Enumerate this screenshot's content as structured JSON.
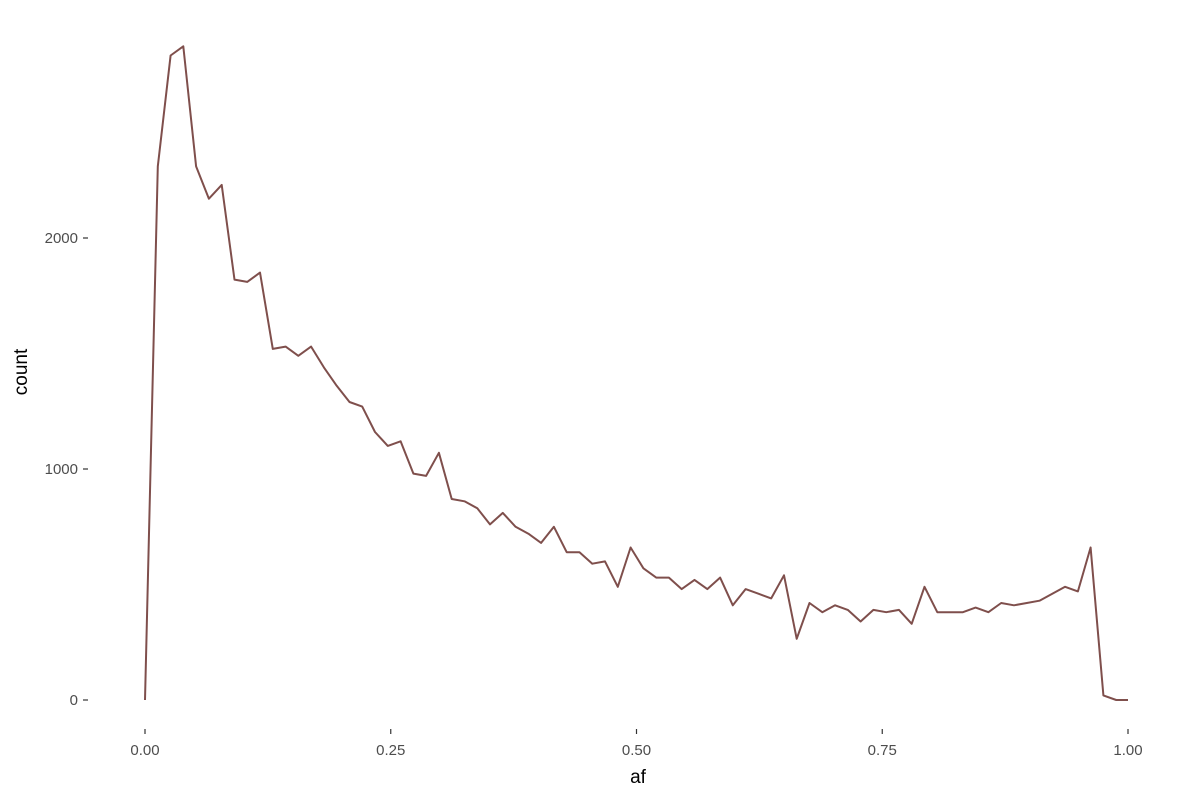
{
  "chart_data": {
    "type": "line",
    "title": "",
    "xlabel": "af",
    "ylabel": "count",
    "xlim": [
      0,
      1
    ],
    "ylim": [
      0,
      2850
    ],
    "grid": false,
    "line_color": "#7f4f4c",
    "x_ticks": [
      {
        "value": 0,
        "label": "0.00"
      },
      {
        "value": 0.25,
        "label": "0.25"
      },
      {
        "value": 0.5,
        "label": "0.50"
      },
      {
        "value": 0.75,
        "label": "0.75"
      },
      {
        "value": 1,
        "label": "1.00"
      }
    ],
    "y_ticks": [
      {
        "value": 0,
        "label": "0"
      },
      {
        "value": 1000,
        "label": "1000"
      },
      {
        "value": 2000,
        "label": "2000"
      }
    ],
    "series": [
      {
        "x": [
          0.0,
          0.013,
          0.026,
          0.039,
          0.052,
          0.065,
          0.078,
          0.091,
          0.104,
          0.117,
          0.13,
          0.143,
          0.156,
          0.169,
          0.182,
          0.195,
          0.208,
          0.221,
          0.234,
          0.247,
          0.26,
          0.273,
          0.286,
          0.299,
          0.312,
          0.325,
          0.338,
          0.351,
          0.364,
          0.377,
          0.39,
          0.403,
          0.416,
          0.429,
          0.442,
          0.455,
          0.468,
          0.481,
          0.494,
          0.507,
          0.52,
          0.533,
          0.546,
          0.559,
          0.572,
          0.585,
          0.598,
          0.611,
          0.624,
          0.637,
          0.65,
          0.663,
          0.676,
          0.689,
          0.702,
          0.715,
          0.728,
          0.741,
          0.754,
          0.767,
          0.78,
          0.793,
          0.806,
          0.819,
          0.832,
          0.845,
          0.858,
          0.871,
          0.884,
          0.897,
          0.91,
          0.923,
          0.936,
          0.949,
          0.962,
          0.975,
          0.988,
          1.0
        ],
        "values": [
          0,
          2310,
          2790,
          2830,
          2310,
          2170,
          2230,
          1820,
          1810,
          1850,
          1520,
          1530,
          1490,
          1530,
          1440,
          1360,
          1290,
          1270,
          1160,
          1100,
          1120,
          980,
          970,
          1070,
          870,
          860,
          830,
          760,
          810,
          750,
          720,
          680,
          750,
          640,
          640,
          590,
          600,
          490,
          660,
          570,
          530,
          530,
          480,
          520,
          480,
          530,
          410,
          480,
          460,
          440,
          540,
          265,
          420,
          380,
          410,
          390,
          340,
          390,
          380,
          390,
          330,
          490,
          380,
          380,
          380,
          400,
          380,
          420,
          410,
          420,
          430,
          460,
          490,
          470,
          660,
          20,
          0,
          0
        ]
      }
    ]
  }
}
